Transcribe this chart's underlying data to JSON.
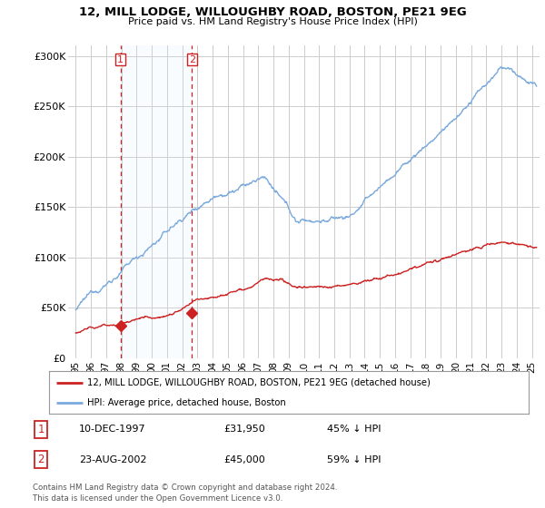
{
  "title_line1": "12, MILL LODGE, WILLOUGHBY ROAD, BOSTON, PE21 9EG",
  "title_line2": "Price paid vs. HM Land Registry's House Price Index (HPI)",
  "ylabel_ticks": [
    "£0",
    "£50K",
    "£100K",
    "£150K",
    "£200K",
    "£250K",
    "£300K"
  ],
  "ytick_values": [
    0,
    50000,
    100000,
    150000,
    200000,
    250000,
    300000
  ],
  "ylim": [
    0,
    310000
  ],
  "xlim_start": 1994.5,
  "xlim_end": 2025.5,
  "hpi_color": "#7aaadd",
  "price_color": "#cc2222",
  "sale1_date": 1997.94,
  "sale1_price": 31950,
  "sale2_date": 2002.64,
  "sale2_price": 45000,
  "legend_label1": "12, MILL LODGE, WILLOUGHBY ROAD, BOSTON, PE21 9EG (detached house)",
  "legend_label2": "HPI: Average price, detached house, Boston",
  "table_row1": [
    "1",
    "10-DEC-1997",
    "£31,950",
    "45% ↓ HPI"
  ],
  "table_row2": [
    "2",
    "23-AUG-2002",
    "£45,000",
    "59% ↓ HPI"
  ],
  "footnote": "Contains HM Land Registry data © Crown copyright and database right 2024.\nThis data is licensed under the Open Government Licence v3.0.",
  "background_color": "#ffffff",
  "grid_color": "#cccccc",
  "shade_color": "#ddeeff"
}
